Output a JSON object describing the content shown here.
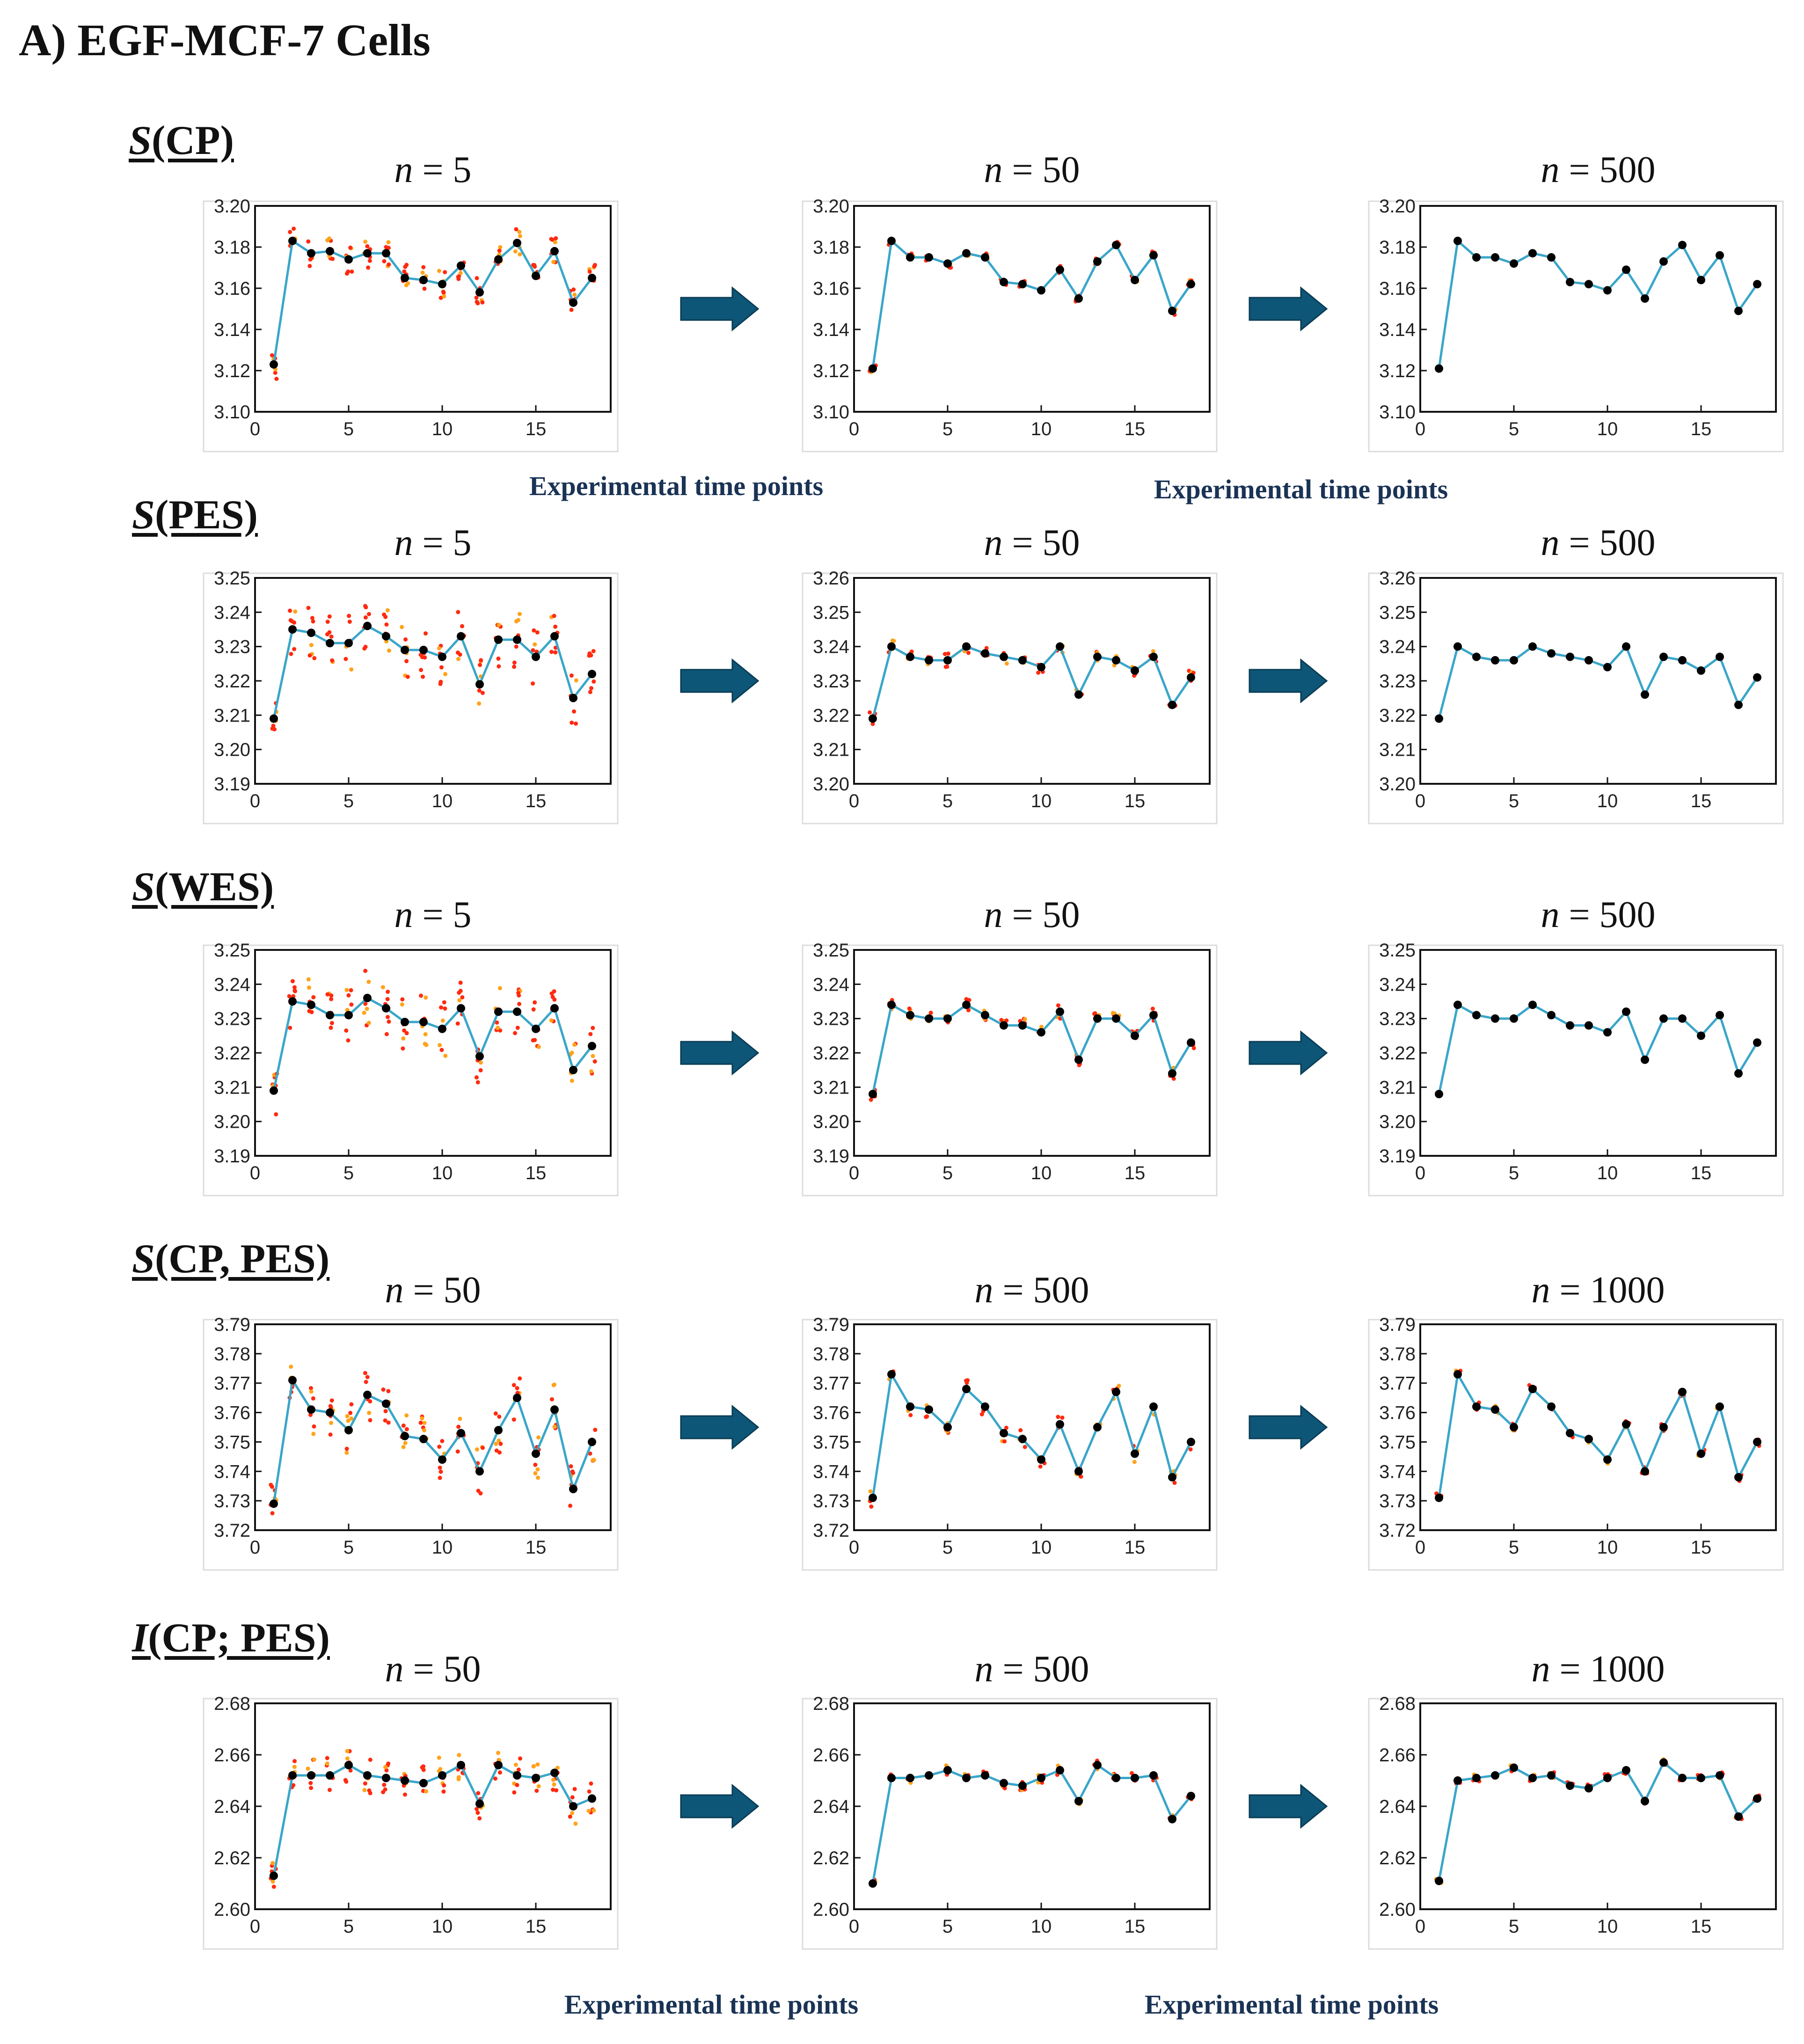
{
  "figure": {
    "title": "A) EGF-MCF-7 Cells",
    "xaxis_label": "Experimental time points"
  },
  "colors": {
    "line": "#3aa6c9",
    "point": "#000000",
    "scatter_red": "#ff2a10",
    "scatter_orange": "#ffa31a",
    "arrow": "#0e5677",
    "frame": "#111111"
  },
  "chart_data": [
    {
      "section": "S(CP)",
      "section_italic": "S",
      "section_rest": "(CP)",
      "panels": [
        {
          "title_var": "n",
          "title_rest": " = 5",
          "type": "line",
          "xlim": [
            0,
            19
          ],
          "xticks": [
            0,
            5,
            10,
            15
          ],
          "ylim": [
            3.1,
            3.2
          ],
          "yticks": [
            "3.10",
            "3.12",
            "3.14",
            "3.16",
            "3.18",
            "3.20"
          ],
          "x": [
            1,
            2,
            3,
            4,
            5,
            6,
            7,
            8,
            9,
            10,
            11,
            12,
            13,
            14,
            15,
            16,
            17,
            18
          ],
          "values": [
            3.123,
            3.183,
            3.177,
            3.178,
            3.174,
            3.177,
            3.177,
            3.165,
            3.164,
            3.162,
            3.171,
            3.158,
            3.174,
            3.182,
            3.166,
            3.178,
            3.153,
            3.165
          ],
          "spread": 0.007
        },
        {
          "title_var": "n",
          "title_rest": " = 50",
          "type": "line",
          "xlim": [
            0,
            19
          ],
          "xticks": [
            0,
            5,
            10,
            15
          ],
          "ylim": [
            3.1,
            3.2
          ],
          "yticks": [
            "3.10",
            "3.12",
            "3.14",
            "3.16",
            "3.18",
            "3.20"
          ],
          "x": [
            1,
            2,
            3,
            4,
            5,
            6,
            7,
            8,
            9,
            10,
            11,
            12,
            13,
            14,
            15,
            16,
            17,
            18
          ],
          "values": [
            3.121,
            3.183,
            3.175,
            3.175,
            3.172,
            3.177,
            3.175,
            3.163,
            3.162,
            3.159,
            3.169,
            3.155,
            3.173,
            3.181,
            3.164,
            3.176,
            3.149,
            3.162
          ],
          "spread": 0.002
        },
        {
          "title_var": "n",
          "title_rest": " = 500",
          "type": "line",
          "xlim": [
            0,
            19
          ],
          "xticks": [
            0,
            5,
            10,
            15
          ],
          "ylim": [
            3.1,
            3.2
          ],
          "yticks": [
            "3.10",
            "3.12",
            "3.14",
            "3.16",
            "3.18",
            "3.20"
          ],
          "x": [
            1,
            2,
            3,
            4,
            5,
            6,
            7,
            8,
            9,
            10,
            11,
            12,
            13,
            14,
            15,
            16,
            17,
            18
          ],
          "values": [
            3.121,
            3.183,
            3.175,
            3.175,
            3.172,
            3.177,
            3.175,
            3.163,
            3.162,
            3.159,
            3.169,
            3.155,
            3.173,
            3.181,
            3.164,
            3.176,
            3.149,
            3.162
          ],
          "spread": 0
        }
      ]
    },
    {
      "section": "S(PES)",
      "section_italic": "S",
      "section_rest": "(PES)",
      "panels": [
        {
          "title_var": "n",
          "title_rest": " = 5",
          "type": "line",
          "xlim": [
            0,
            19
          ],
          "xticks": [
            0,
            5,
            10,
            15
          ],
          "ylim": [
            3.19,
            3.25
          ],
          "yticks": [
            "3.19",
            "3.20",
            "3.21",
            "3.22",
            "3.23",
            "3.24",
            "3.25"
          ],
          "x": [
            1,
            2,
            3,
            4,
            5,
            6,
            7,
            8,
            9,
            10,
            11,
            12,
            13,
            14,
            15,
            16,
            17,
            18
          ],
          "values": [
            3.209,
            3.235,
            3.234,
            3.231,
            3.231,
            3.236,
            3.233,
            3.229,
            3.229,
            3.227,
            3.233,
            3.219,
            3.232,
            3.232,
            3.227,
            3.233,
            3.215,
            3.222
          ],
          "spread": 0.008
        },
        {
          "title_var": "n",
          "title_rest": " = 50",
          "type": "line",
          "xlim": [
            0,
            19
          ],
          "xticks": [
            0,
            5,
            10,
            15
          ],
          "ylim": [
            3.2,
            3.26
          ],
          "yticks": [
            "3.20",
            "3.21",
            "3.22",
            "3.23",
            "3.24",
            "3.25",
            "3.26"
          ],
          "x": [
            1,
            2,
            3,
            4,
            5,
            6,
            7,
            8,
            9,
            10,
            11,
            12,
            13,
            14,
            15,
            16,
            17,
            18
          ],
          "values": [
            3.219,
            3.24,
            3.237,
            3.236,
            3.236,
            3.24,
            3.238,
            3.237,
            3.236,
            3.234,
            3.24,
            3.226,
            3.237,
            3.236,
            3.233,
            3.237,
            3.223,
            3.231
          ],
          "spread": 0.002
        },
        {
          "title_var": "n",
          "title_rest": " = 500",
          "type": "line",
          "xlim": [
            0,
            19
          ],
          "xticks": [
            0,
            5,
            10,
            15
          ],
          "ylim": [
            3.2,
            3.26
          ],
          "yticks": [
            "3.20",
            "3.21",
            "3.22",
            "3.23",
            "3.24",
            "3.25",
            "3.26"
          ],
          "x": [
            1,
            2,
            3,
            4,
            5,
            6,
            7,
            8,
            9,
            10,
            11,
            12,
            13,
            14,
            15,
            16,
            17,
            18
          ],
          "values": [
            3.219,
            3.24,
            3.237,
            3.236,
            3.236,
            3.24,
            3.238,
            3.237,
            3.236,
            3.234,
            3.24,
            3.226,
            3.237,
            3.236,
            3.233,
            3.237,
            3.223,
            3.231
          ],
          "spread": 0
        }
      ]
    },
    {
      "section": "S(WES)",
      "section_italic": "S",
      "section_rest": "(WES)",
      "panels": [
        {
          "title_var": "n",
          "title_rest": " = 5",
          "type": "line",
          "xlim": [
            0,
            19
          ],
          "xticks": [
            0,
            5,
            10,
            15
          ],
          "ylim": [
            3.19,
            3.25
          ],
          "yticks": [
            "3.19",
            "3.20",
            "3.21",
            "3.22",
            "3.23",
            "3.24",
            "3.25"
          ],
          "x": [
            1,
            2,
            3,
            4,
            5,
            6,
            7,
            8,
            9,
            10,
            11,
            12,
            13,
            14,
            15,
            16,
            17,
            18
          ],
          "values": [
            3.209,
            3.235,
            3.234,
            3.231,
            3.231,
            3.236,
            3.233,
            3.229,
            3.229,
            3.227,
            3.233,
            3.219,
            3.232,
            3.232,
            3.227,
            3.233,
            3.215,
            3.222
          ],
          "spread": 0.008
        },
        {
          "title_var": "n",
          "title_rest": " = 50",
          "type": "line",
          "xlim": [
            0,
            19
          ],
          "xticks": [
            0,
            5,
            10,
            15
          ],
          "ylim": [
            3.19,
            3.25
          ],
          "yticks": [
            "3.19",
            "3.20",
            "3.21",
            "3.22",
            "3.23",
            "3.24",
            "3.25"
          ],
          "x": [
            1,
            2,
            3,
            4,
            5,
            6,
            7,
            8,
            9,
            10,
            11,
            12,
            13,
            14,
            15,
            16,
            17,
            18
          ],
          "values": [
            3.208,
            3.234,
            3.231,
            3.23,
            3.23,
            3.234,
            3.231,
            3.228,
            3.228,
            3.226,
            3.232,
            3.218,
            3.23,
            3.23,
            3.225,
            3.231,
            3.214,
            3.223
          ],
          "spread": 0.002
        },
        {
          "title_var": "n",
          "title_rest": " = 500",
          "type": "line",
          "xlim": [
            0,
            19
          ],
          "xticks": [
            0,
            5,
            10,
            15
          ],
          "ylim": [
            3.19,
            3.25
          ],
          "yticks": [
            "3.19",
            "3.20",
            "3.21",
            "3.22",
            "3.23",
            "3.24",
            "3.25"
          ],
          "x": [
            1,
            2,
            3,
            4,
            5,
            6,
            7,
            8,
            9,
            10,
            11,
            12,
            13,
            14,
            15,
            16,
            17,
            18
          ],
          "values": [
            3.208,
            3.234,
            3.231,
            3.23,
            3.23,
            3.234,
            3.231,
            3.228,
            3.228,
            3.226,
            3.232,
            3.218,
            3.23,
            3.23,
            3.225,
            3.231,
            3.214,
            3.223
          ],
          "spread": 0
        }
      ]
    },
    {
      "section": "S(CP, PES)",
      "section_italic": "S",
      "section_rest": "(CP, PES)",
      "panels": [
        {
          "title_var": "n",
          "title_rest": " = 50",
          "type": "line",
          "xlim": [
            0,
            19
          ],
          "xticks": [
            0,
            5,
            10,
            15
          ],
          "ylim": [
            3.72,
            3.79
          ],
          "yticks": [
            "3.72",
            "3.73",
            "3.74",
            "3.75",
            "3.76",
            "3.77",
            "3.78",
            "3.79"
          ],
          "x": [
            1,
            2,
            3,
            4,
            5,
            6,
            7,
            8,
            9,
            10,
            11,
            12,
            13,
            14,
            15,
            16,
            17,
            18
          ],
          "values": [
            3.729,
            3.771,
            3.761,
            3.76,
            3.754,
            3.766,
            3.763,
            3.752,
            3.751,
            3.744,
            3.753,
            3.74,
            3.754,
            3.765,
            3.746,
            3.761,
            3.734,
            3.75
          ],
          "spread": 0.009
        },
        {
          "title_var": "n",
          "title_rest": " = 500",
          "type": "line",
          "xlim": [
            0,
            19
          ],
          "xticks": [
            0,
            5,
            10,
            15
          ],
          "ylim": [
            3.72,
            3.79
          ],
          "yticks": [
            "3.72",
            "3.73",
            "3.74",
            "3.75",
            "3.76",
            "3.77",
            "3.78",
            "3.79"
          ],
          "x": [
            1,
            2,
            3,
            4,
            5,
            6,
            7,
            8,
            9,
            10,
            11,
            12,
            13,
            14,
            15,
            16,
            17,
            18
          ],
          "values": [
            3.731,
            3.773,
            3.762,
            3.761,
            3.755,
            3.768,
            3.762,
            3.753,
            3.751,
            3.744,
            3.756,
            3.74,
            3.755,
            3.767,
            3.746,
            3.762,
            3.738,
            3.75
          ],
          "spread": 0.003
        },
        {
          "title_var": "n",
          "title_rest": " = 1000",
          "type": "line",
          "xlim": [
            0,
            19
          ],
          "xticks": [
            0,
            5,
            10,
            15
          ],
          "ylim": [
            3.72,
            3.79
          ],
          "yticks": [
            "3.72",
            "3.73",
            "3.74",
            "3.75",
            "3.76",
            "3.77",
            "3.78",
            "3.79"
          ],
          "x": [
            1,
            2,
            3,
            4,
            5,
            6,
            7,
            8,
            9,
            10,
            11,
            12,
            13,
            14,
            15,
            16,
            17,
            18
          ],
          "values": [
            3.731,
            3.773,
            3.762,
            3.761,
            3.755,
            3.768,
            3.762,
            3.753,
            3.751,
            3.744,
            3.756,
            3.74,
            3.755,
            3.767,
            3.746,
            3.762,
            3.738,
            3.75
          ],
          "spread": 0.0015
        }
      ]
    },
    {
      "section": "I(CP; PES)",
      "section_italic": "I",
      "section_rest": "(CP; PES)",
      "panels": [
        {
          "title_var": "n",
          "title_rest": " = 50",
          "type": "line",
          "xlim": [
            0,
            19
          ],
          "xticks": [
            0,
            5,
            10,
            15
          ],
          "ylim": [
            2.6,
            2.68
          ],
          "yticks": [
            "2.60",
            "2.62",
            "2.64",
            "2.66",
            "2.68"
          ],
          "x": [
            1,
            2,
            3,
            4,
            5,
            6,
            7,
            8,
            9,
            10,
            11,
            12,
            13,
            14,
            15,
            16,
            17,
            18
          ],
          "values": [
            2.613,
            2.652,
            2.652,
            2.652,
            2.656,
            2.652,
            2.651,
            2.65,
            2.649,
            2.652,
            2.656,
            2.641,
            2.656,
            2.652,
            2.651,
            2.653,
            2.64,
            2.643
          ],
          "spread": 0.007
        },
        {
          "title_var": "n",
          "title_rest": " = 500",
          "type": "line",
          "xlim": [
            0,
            19
          ],
          "xticks": [
            0,
            5,
            10,
            15
          ],
          "ylim": [
            2.6,
            2.68
          ],
          "yticks": [
            "2.60",
            "2.62",
            "2.64",
            "2.66",
            "2.68"
          ],
          "x": [
            1,
            2,
            3,
            4,
            5,
            6,
            7,
            8,
            9,
            10,
            11,
            12,
            13,
            14,
            15,
            16,
            17,
            18
          ],
          "values": [
            2.61,
            2.651,
            2.651,
            2.652,
            2.654,
            2.651,
            2.652,
            2.649,
            2.648,
            2.651,
            2.654,
            2.642,
            2.656,
            2.651,
            2.651,
            2.652,
            2.635,
            2.644
          ],
          "spread": 0.002
        },
        {
          "title_var": "n",
          "title_rest": " = 1000",
          "type": "line",
          "xlim": [
            0,
            19
          ],
          "xticks": [
            0,
            5,
            10,
            15
          ],
          "ylim": [
            2.6,
            2.68
          ],
          "yticks": [
            "2.60",
            "2.62",
            "2.64",
            "2.66",
            "2.68"
          ],
          "x": [
            1,
            2,
            3,
            4,
            5,
            6,
            7,
            8,
            9,
            10,
            11,
            12,
            13,
            14,
            15,
            16,
            17,
            18
          ],
          "values": [
            2.611,
            2.65,
            2.651,
            2.652,
            2.655,
            2.651,
            2.652,
            2.648,
            2.647,
            2.651,
            2.654,
            2.642,
            2.657,
            2.651,
            2.651,
            2.652,
            2.636,
            2.643
          ],
          "spread": 0.0015
        }
      ]
    }
  ]
}
